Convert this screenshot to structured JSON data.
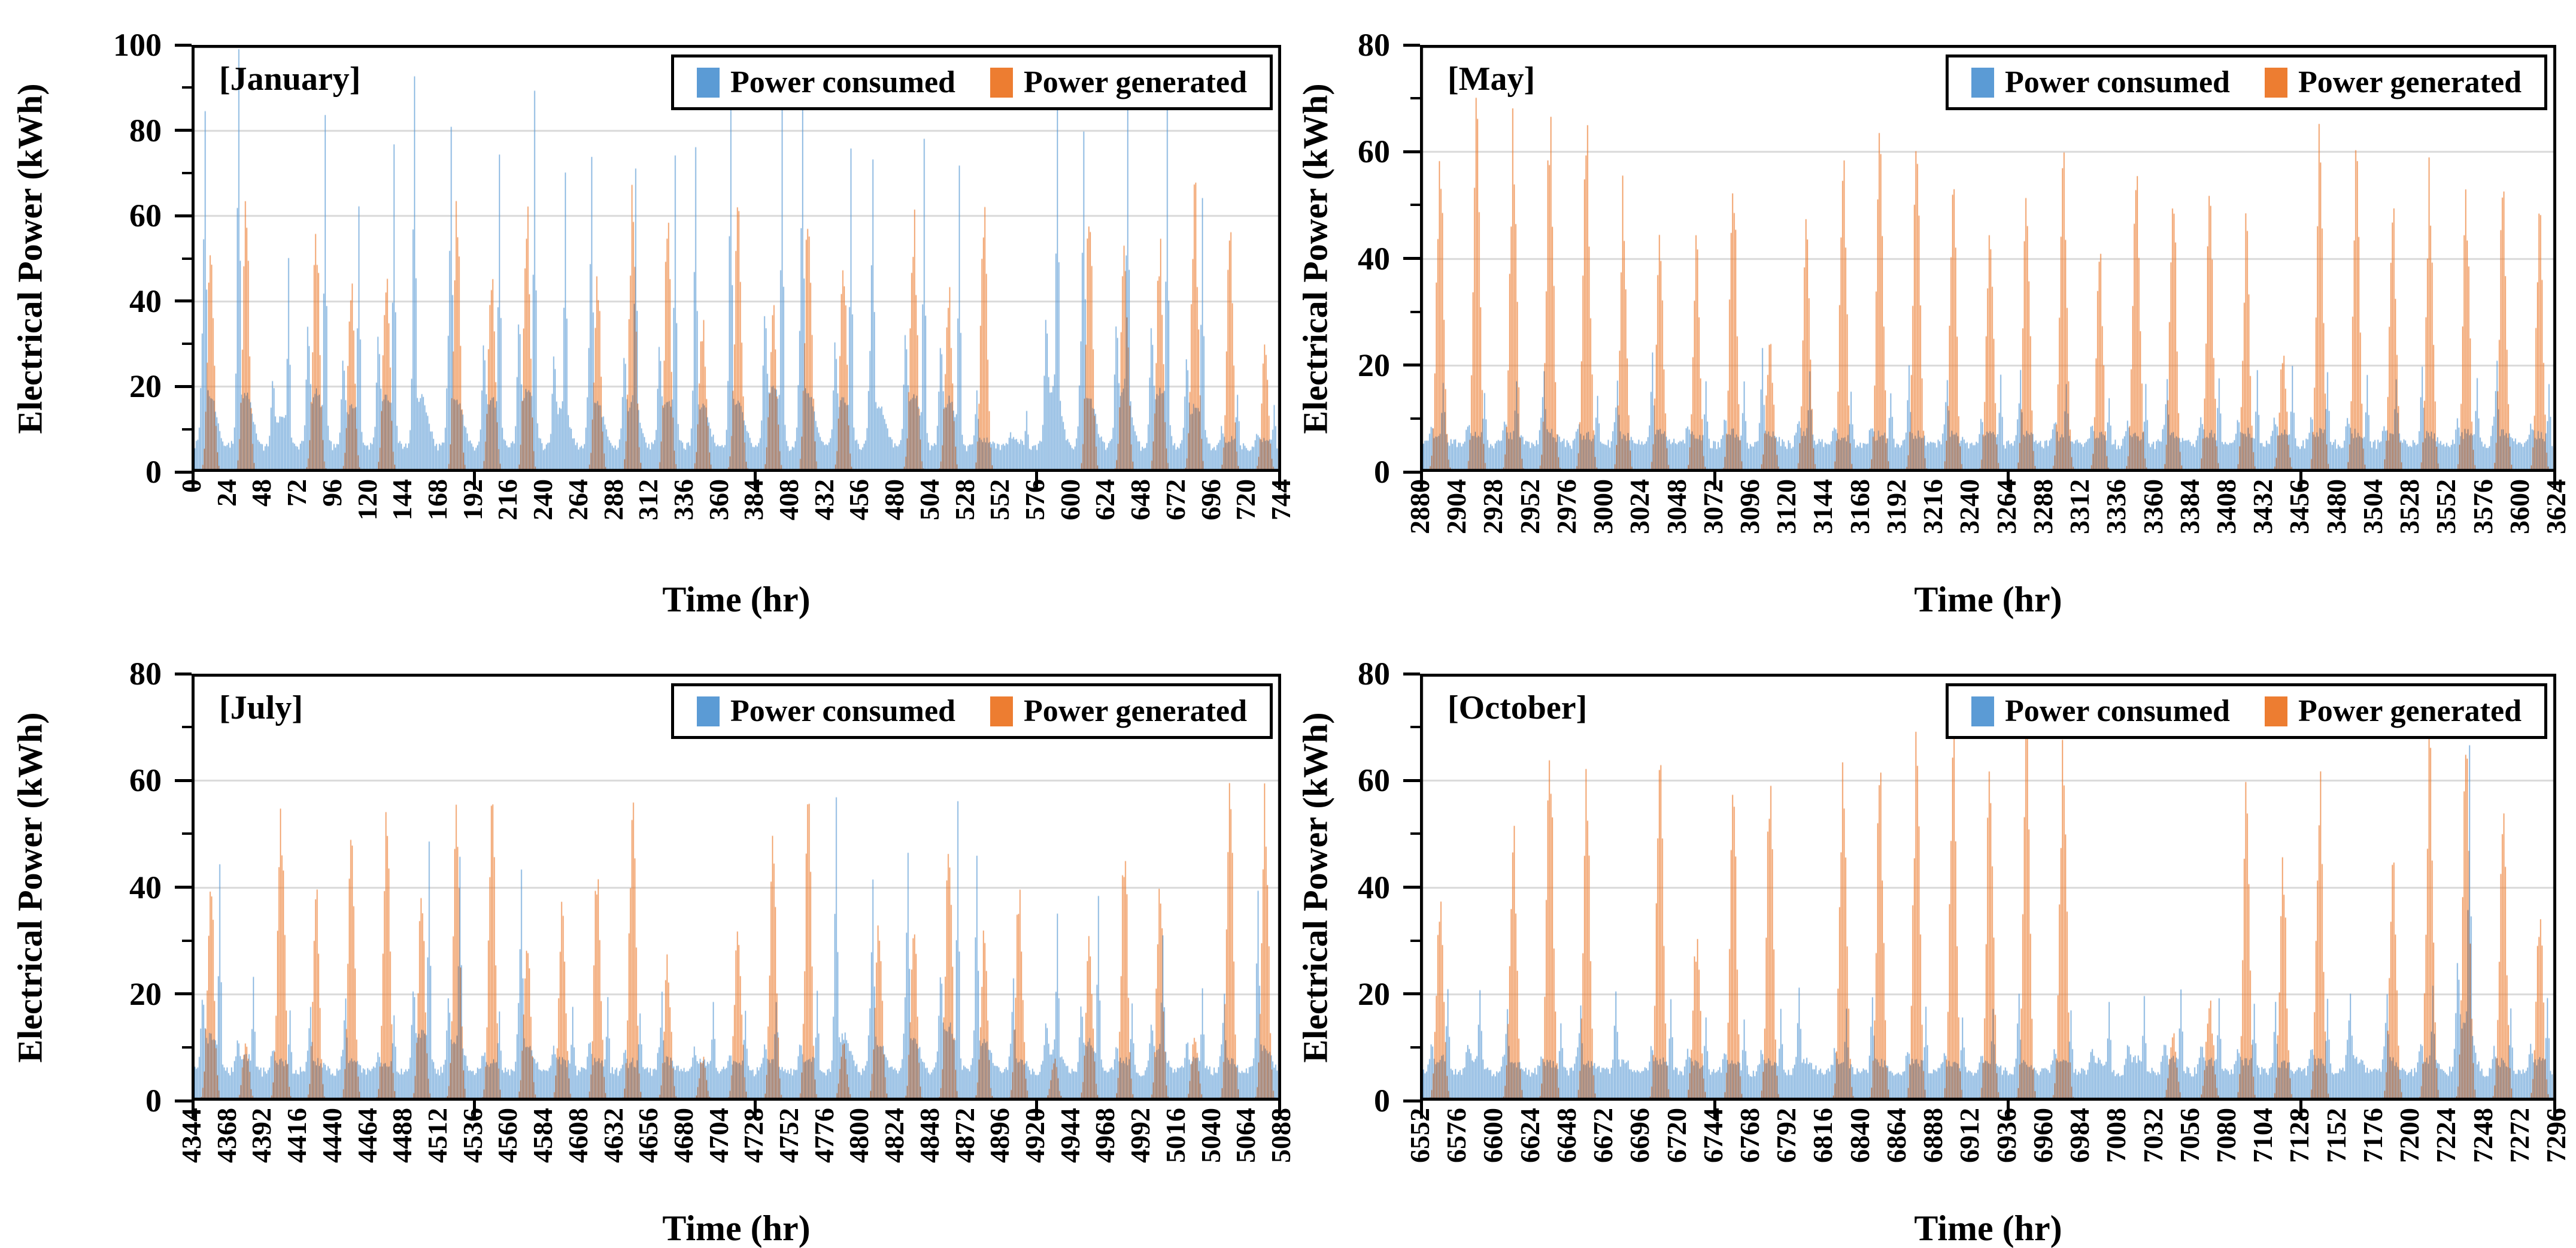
{
  "page": {
    "background": "#FFFFFF"
  },
  "colors": {
    "consumed": "#5B9BD5",
    "generated": "#ED7D31",
    "grid": "#D9D9D9",
    "axis": "#000000",
    "text": "#000000"
  },
  "legend": {
    "items": [
      {
        "label": "Power consumed",
        "color_key": "consumed"
      },
      {
        "label": "Power generated",
        "color_key": "generated"
      }
    ]
  },
  "chart_data": [
    {
      "type": "bar",
      "title": "[January]",
      "xlabel": "Time (hr)",
      "ylabel": "Electrical Power (kWh)",
      "ylim": [
        0,
        100
      ],
      "ytick_step": 20,
      "yticks": [
        "0",
        "20",
        "40",
        "60",
        "80",
        "100"
      ],
      "x_start": 0,
      "x_end": 744,
      "x_tick_interval": 24,
      "x_major_tick_hours": [
        0,
        192,
        384,
        576,
        744
      ],
      "xticks": [
        "0",
        "24",
        "48",
        "72",
        "96",
        "120",
        "144",
        "168",
        "192",
        "216",
        "240",
        "264",
        "288",
        "312",
        "336",
        "360",
        "384",
        "408",
        "432",
        "456",
        "480",
        "504",
        "528",
        "552",
        "576",
        "600",
        "624",
        "648",
        "672",
        "696",
        "720",
        "744"
      ],
      "hours_per_day": 24,
      "days": 31,
      "grid": true,
      "legend_position": "top-right",
      "series": [
        {
          "name": "Power consumed",
          "color_key": "consumed",
          "base": 4.8,
          "daily_peaks": [
            66,
            71,
            41,
            73,
            52,
            66,
            65,
            62,
            63,
            77,
            55,
            57,
            57,
            63,
            53,
            62,
            83,
            69,
            64,
            57,
            70,
            63,
            10,
            8,
            79,
            62,
            76,
            74,
            54,
            12,
            10
          ]
        },
        {
          "name": "Power generated",
          "color_key": "generated",
          "base": 0,
          "daily_peaks": [
            54,
            59,
            0,
            55,
            45,
            47,
            0,
            62,
            46,
            62,
            0,
            46,
            63,
            55,
            34,
            57,
            37,
            61,
            51,
            0,
            57,
            40,
            63,
            0,
            0,
            64,
            53,
            52,
            64,
            54,
            29
          ]
        }
      ]
    },
    {
      "type": "bar",
      "title": "[May]",
      "xlabel": "Time (hr)",
      "ylabel": "Electrical Power (kWh)",
      "ylim": [
        0,
        80
      ],
      "ytick_step": 20,
      "yticks": [
        "0",
        "20",
        "40",
        "60",
        "80"
      ],
      "x_start": 2880,
      "x_end": 3624,
      "x_tick_interval": 24,
      "x_major_tick_hours": [
        2880,
        3072,
        3264,
        3456,
        3624
      ],
      "xticks": [
        "2880",
        "2904",
        "2928",
        "2952",
        "2976",
        "3000",
        "3024",
        "3048",
        "3072",
        "3096",
        "3120",
        "3144",
        "3168",
        "3192",
        "3216",
        "3240",
        "3264",
        "3288",
        "3312",
        "3336",
        "3360",
        "3384",
        "3408",
        "3432",
        "3456",
        "3480",
        "3504",
        "3528",
        "3552",
        "3576",
        "3600",
        "3624"
      ],
      "hours_per_day": 24,
      "days": 31,
      "grid": true,
      "legend_position": "top-right",
      "series": [
        {
          "name": "Power consumed",
          "color_key": "consumed",
          "base": 4.2,
          "daily_peaks": [
            10,
            9,
            10,
            12,
            9,
            10,
            13,
            11,
            12,
            13,
            12,
            9,
            10,
            11,
            10,
            12,
            11,
            10,
            9,
            10,
            11,
            12,
            13,
            14,
            13,
            12,
            10,
            11,
            12,
            13,
            10
          ]
        },
        {
          "name": "Power generated",
          "color_key": "generated",
          "base": 0,
          "daily_peaks": [
            56,
            64,
            63,
            64,
            61,
            51,
            45,
            44,
            54,
            24,
            48,
            58,
            58,
            60,
            53,
            46,
            53,
            56,
            42,
            58,
            56,
            48,
            45,
            21,
            61,
            56,
            48,
            54,
            51,
            51,
            50
          ]
        }
      ]
    },
    {
      "type": "bar",
      "title": "[July]",
      "xlabel": "Time (hr)",
      "ylabel": "Electrical Power (kWh)",
      "ylim": [
        0,
        80
      ],
      "ytick_step": 20,
      "yticks": [
        "0",
        "20",
        "40",
        "60",
        "80"
      ],
      "x_start": 4344,
      "x_end": 5088,
      "x_tick_interval": 24,
      "x_major_tick_hours": [
        4344,
        4536,
        4728,
        4920,
        5088
      ],
      "xticks": [
        "4344",
        "4368",
        "4392",
        "4416",
        "4440",
        "4464",
        "4488",
        "4512",
        "4536",
        "4560",
        "4584",
        "4608",
        "4632",
        "4656",
        "4680",
        "4704",
        "4728",
        "4752",
        "4776",
        "4800",
        "4824",
        "4848",
        "4872",
        "4896",
        "4920",
        "4944",
        "4968",
        "4992",
        "5016",
        "5040",
        "5064",
        "5088"
      ],
      "hours_per_day": 24,
      "days": 31,
      "grid": true,
      "legend_position": "top-right",
      "series": [
        {
          "name": "Power consumed",
          "color_key": "consumed",
          "base": 4.5,
          "daily_peaks": [
            37,
            16,
            10,
            10,
            12,
            10,
            40,
            35,
            10,
            31,
            12,
            14,
            10,
            12,
            12,
            10,
            12,
            14,
            38,
            30,
            35,
            48,
            31,
            14,
            25,
            31,
            12,
            22,
            14,
            12,
            25
          ]
        },
        {
          "name": "Power generated",
          "color_key": "generated",
          "base": 0,
          "daily_peaks": [
            40,
            12,
            54,
            38,
            51,
            54,
            39,
            52,
            54,
            30,
            36,
            44,
            54,
            25,
            8,
            34,
            52,
            55,
            10,
            35,
            34,
            45,
            30,
            38,
            8,
            29,
            48,
            40,
            12,
            57,
            55
          ]
        }
      ]
    },
    {
      "type": "bar",
      "title": "[October]",
      "xlabel": "Time (hr)",
      "ylabel": "Electrical Power (kWh)",
      "ylim": [
        0,
        80
      ],
      "ytick_step": 20,
      "yticks": [
        "0",
        "20",
        "40",
        "60",
        "80"
      ],
      "x_start": 6552,
      "x_end": 7296,
      "x_tick_interval": 24,
      "x_major_tick_hours": [
        6552,
        6744,
        6936,
        7128,
        7296
      ],
      "xticks": [
        "6552",
        "6576",
        "6600",
        "6624",
        "6648",
        "6672",
        "6696",
        "6720",
        "6744",
        "6768",
        "6792",
        "6816",
        "6840",
        "6864",
        "6888",
        "6912",
        "6936",
        "6960",
        "6984",
        "7008",
        "7032",
        "7056",
        "7080",
        "7104",
        "7128",
        "7152",
        "7176",
        "7200",
        "7224",
        "7248",
        "7272",
        "7296"
      ],
      "hours_per_day": 24,
      "days": 31,
      "grid": true,
      "legend_position": "top-right",
      "series": [
        {
          "name": "Power consumed",
          "color_key": "consumed",
          "base": 4.4,
          "daily_peaks": [
            15,
            14,
            10,
            9,
            10,
            12,
            13,
            10,
            10,
            11,
            12,
            10,
            10,
            11,
            10,
            10,
            11,
            10,
            12,
            13,
            15,
            13,
            11,
            10,
            12,
            13,
            12,
            14,
            53,
            11,
            13
          ]
        },
        {
          "name": "Power generated",
          "color_key": "generated",
          "base": 0,
          "daily_peaks": [
            38,
            0,
            48,
            64,
            61,
            0,
            63,
            30,
            57,
            60,
            0,
            62,
            58,
            64,
            65,
            64,
            67,
            63,
            0,
            0,
            13,
            18,
            57,
            42,
            58,
            0,
            43,
            66,
            64,
            52,
            34
          ]
        }
      ]
    }
  ]
}
